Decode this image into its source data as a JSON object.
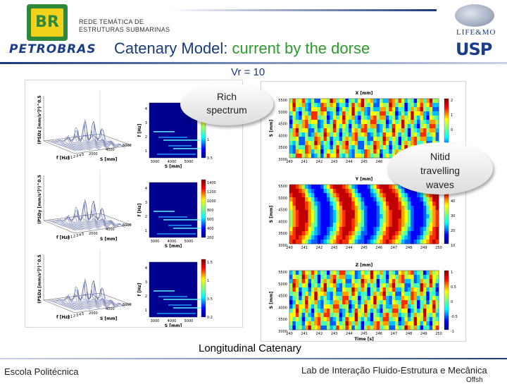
{
  "header": {
    "logo_text": "BR",
    "company": "PETROBRAS",
    "network_line1": "REDE TEMÁTICA DE",
    "network_line2": "ESTRUTURAS SUBMARINAS",
    "title_part1": "Catenary Model: ",
    "title_part2": "current by the dorse",
    "lab_logo": "LIFE&MO",
    "univ_logo": "USP"
  },
  "vr_label": "Vr = 10",
  "callouts": {
    "rich_l1": "Rich",
    "rich_l2": "spectrum",
    "nitid_l1": "Nitid",
    "nitid_l2": "travelling",
    "nitid_l3": "waves"
  },
  "left_panel": {
    "rows": [
      {
        "z_label": "(PSDz [mm/s²]²)^0.5",
        "x_label": "f [Hz]",
        "y_label": "S [mm]",
        "f_ticks": [
          "0",
          "1",
          "2",
          "3",
          "4",
          "5"
        ],
        "s_ticks": [
          "2000",
          "4000",
          "6000"
        ],
        "map_f_ticks": [
          "4",
          "3",
          "2",
          "1"
        ],
        "map_s_ticks": [
          "3000",
          "4000",
          "5000"
        ],
        "map_xlabel": "S [mm]",
        "map_ylabel": "f [Hz]",
        "cbar": [
          "2",
          "1.5",
          "1",
          "0.5"
        ]
      },
      {
        "z_label": "(PSDy [mm/s²]²)^0.5",
        "x_label": "f [Hz]",
        "y_label": "S [mm]",
        "f_ticks": [
          "0",
          "1",
          "2",
          "3",
          "4",
          "5"
        ],
        "s_ticks": [
          "2000",
          "4000",
          "6000"
        ],
        "map_f_ticks": [
          "4",
          "3",
          "2",
          "1"
        ],
        "map_s_ticks": [
          "3000",
          "4000",
          "5000"
        ],
        "map_xlabel": "S [mm]",
        "map_ylabel": "f [Hz]",
        "cbar": [
          "1400",
          "1200",
          "1000",
          "800",
          "600",
          "400",
          "200"
        ]
      },
      {
        "z_label": "(PSDz [mm/s²]²)^0.5",
        "x_label": "f [Hz]",
        "y_label": "S [mm]",
        "f_ticks": [
          "0",
          "1",
          "2",
          "3",
          "4",
          "5"
        ],
        "s_ticks": [
          "2000",
          "4000",
          "6000"
        ],
        "map_f_ticks": [
          "4",
          "3",
          "2",
          "1"
        ],
        "map_s_ticks": [
          "3000",
          "4000",
          "5000"
        ],
        "map_xlabel": "S [mm]",
        "map_ylabel": "f [Hz]",
        "cbar": [
          "1.5",
          "1",
          "0.5",
          "0.2"
        ]
      }
    ]
  },
  "right_panel": {
    "rows": [
      {
        "title": "X [mm]",
        "ylabel": "S [mm]",
        "y_ticks": [
          "5500",
          "5000",
          "4500",
          "4000",
          "3500",
          "3000"
        ],
        "x_ticks": [
          "240",
          "241",
          "242",
          "243",
          "244",
          "245",
          "246",
          "247",
          "248",
          "249",
          "250"
        ],
        "cbar": [
          "2",
          "1",
          "0",
          "-1",
          "-2"
        ]
      },
      {
        "title": "Y [mm]",
        "ylabel": "S [mm]",
        "y_ticks": [
          "5500",
          "5000",
          "4500",
          "4000",
          "3500",
          "3000"
        ],
        "x_ticks": [
          "240",
          "241",
          "242",
          "243",
          "244",
          "245",
          "246",
          "247",
          "248",
          "249",
          "250"
        ],
        "cbar": [
          "50",
          "40",
          "30",
          "20",
          "10"
        ]
      },
      {
        "title": "Z [mm]",
        "ylabel": "S [mm]",
        "y_ticks": [
          "5500",
          "5000",
          "4500",
          "4000",
          "3500",
          "3000"
        ],
        "x_ticks": [
          "240",
          "241",
          "242",
          "243",
          "244",
          "245",
          "246",
          "247",
          "248",
          "249",
          "250"
        ],
        "cbar": [
          "1",
          "0.5",
          "0",
          "-0.5",
          "-1"
        ],
        "xlabel": "Time [s]"
      }
    ]
  },
  "caption": "Longitudinal Catenary",
  "footer": {
    "left": "Escola Politécnica",
    "right": "Lab de Interação Fluido-Estrutura e Mecânica",
    "right2": "Offsh"
  }
}
